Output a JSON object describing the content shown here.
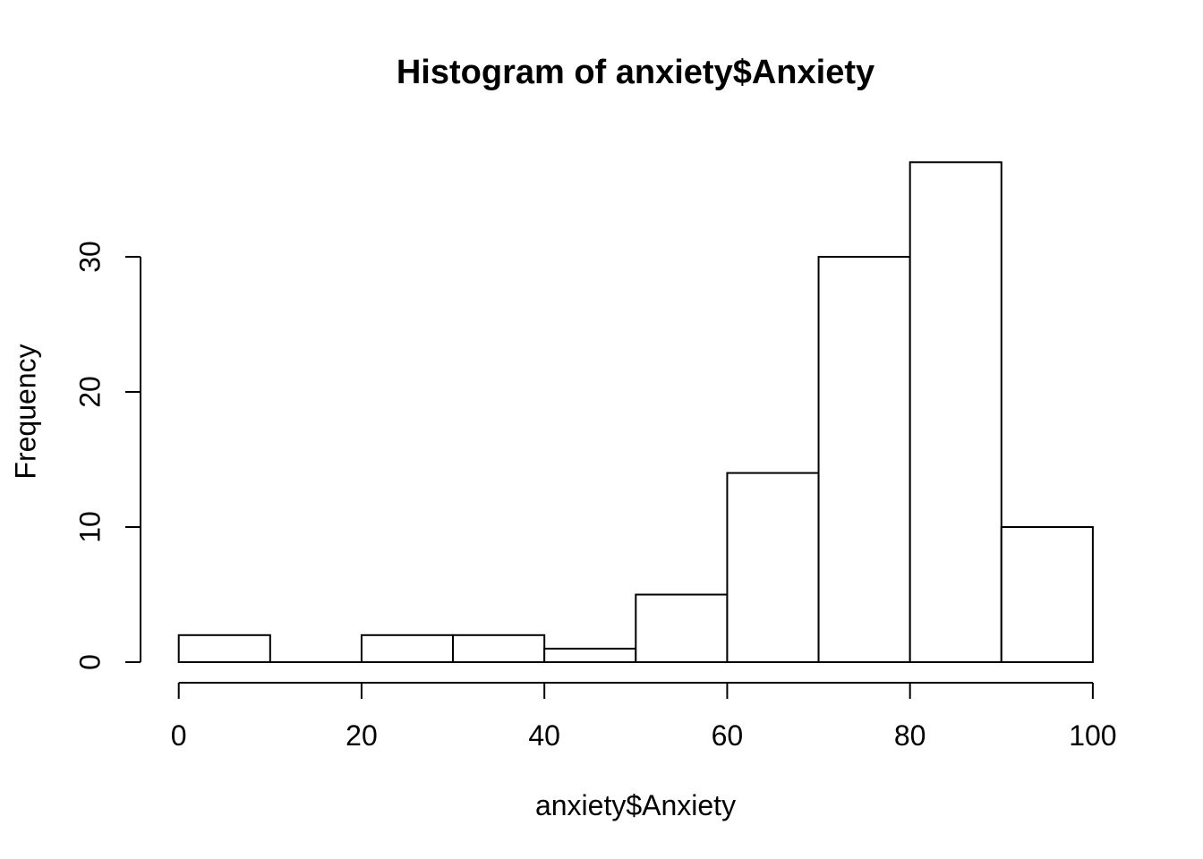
{
  "figure": {
    "background": "#ffffff",
    "foreground": "#000000"
  },
  "chart_data": {
    "type": "bar",
    "subtype": "histogram",
    "title": "Histogram of anxiety$Anxiety",
    "xlabel": "anxiety$Anxiety",
    "ylabel": "Frequency",
    "bin_edges": [
      0,
      10,
      20,
      30,
      40,
      50,
      60,
      70,
      80,
      90,
      100
    ],
    "categories": [
      "0-10",
      "10-20",
      "20-30",
      "30-40",
      "40-50",
      "50-60",
      "60-70",
      "70-80",
      "80-90",
      "90-100"
    ],
    "values": [
      2,
      0,
      2,
      2,
      1,
      5,
      14,
      30,
      37,
      10
    ],
    "xlim": [
      0,
      100
    ],
    "ylim": [
      0,
      30
    ],
    "xticks": [
      0,
      20,
      40,
      60,
      80,
      100
    ],
    "yticks": [
      0,
      10,
      20,
      30
    ],
    "bar_fill": "#ffffff",
    "bar_stroke": "#000000",
    "axis_color": "#000000",
    "grid": false,
    "legend": false
  }
}
